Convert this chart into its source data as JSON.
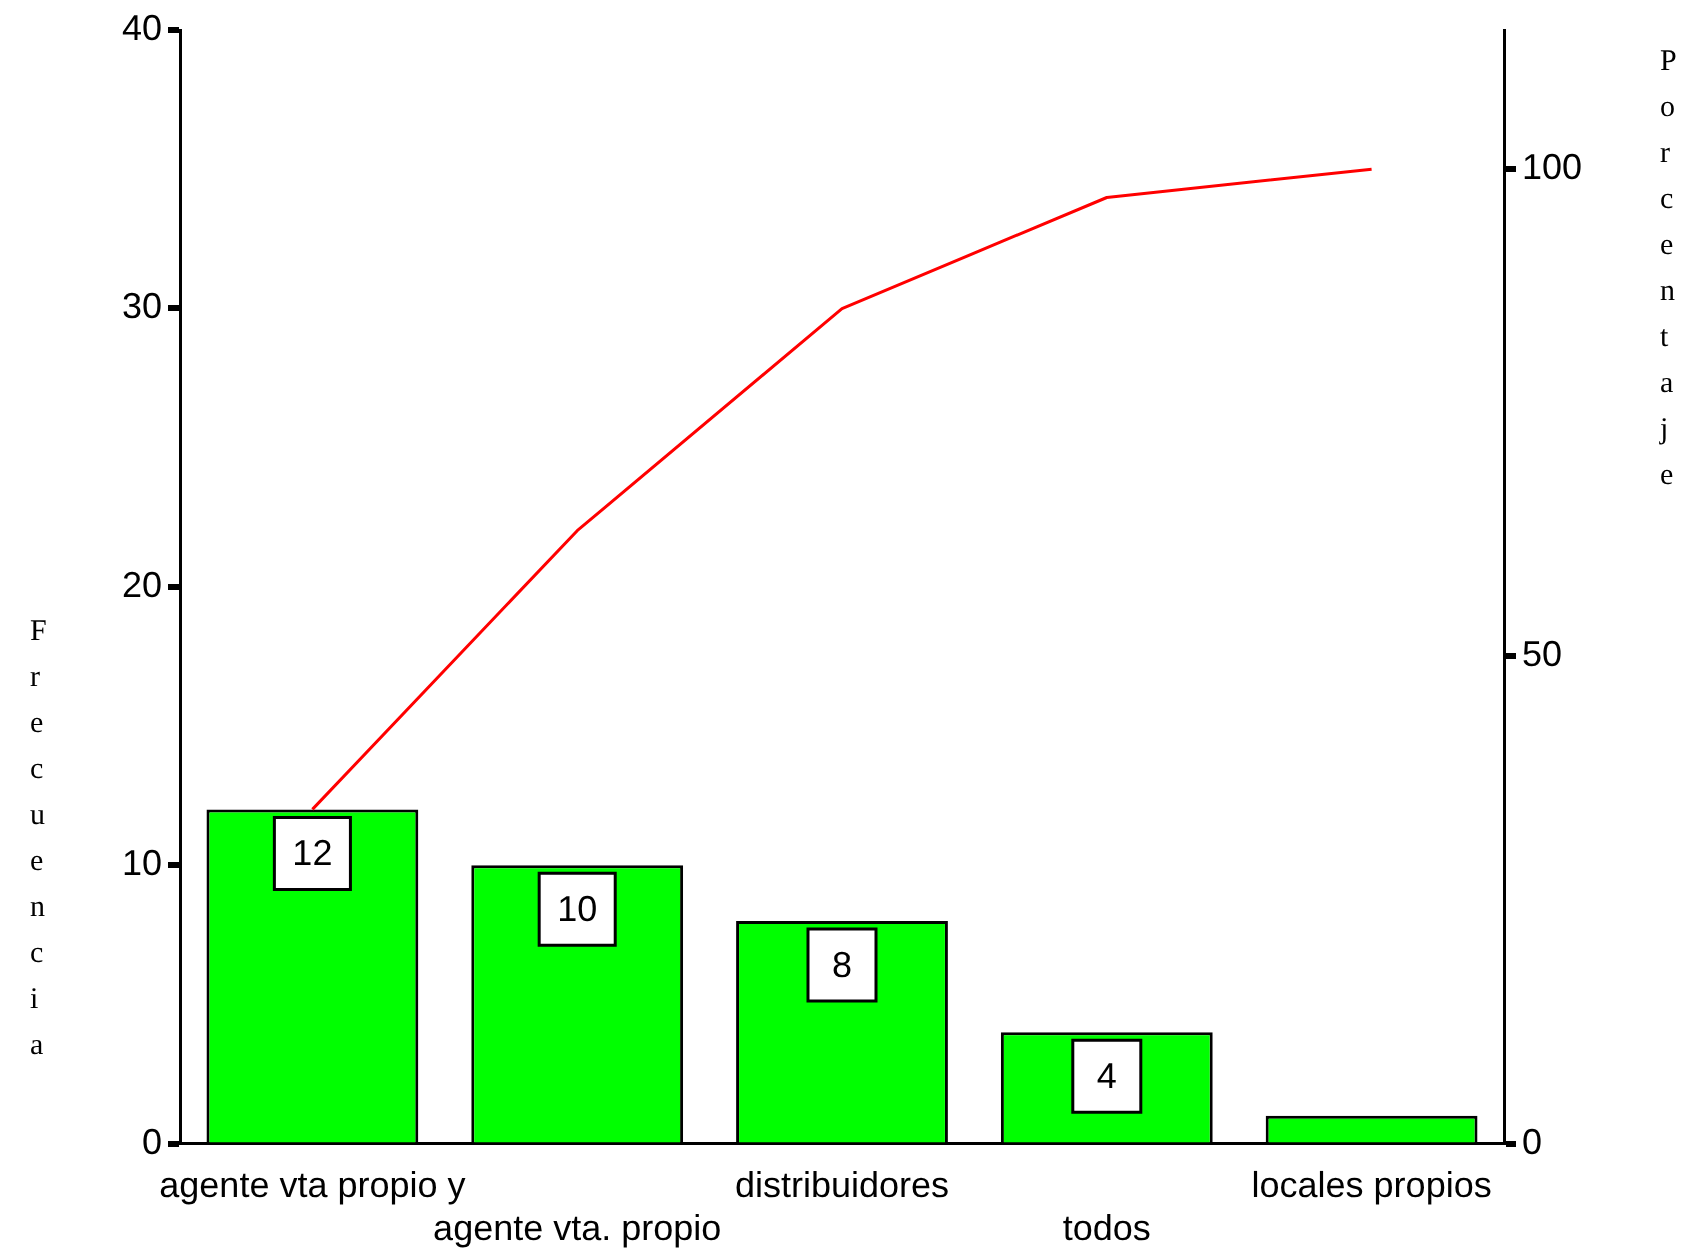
{
  "chart_data": {
    "type": "bar",
    "categories": [
      "agente vta propio y",
      "agente vta. propio",
      "distribuidores",
      "todos",
      "locales propios"
    ],
    "ylabel": "Frecuencia",
    "y2label": "Porcentaje",
    "ylim": [
      0,
      40
    ],
    "yticks": [
      0,
      10,
      20,
      30,
      40
    ],
    "y2lim": [
      0,
      114.29
    ],
    "y2ticks": [
      0,
      50,
      100
    ],
    "grid": false,
    "legend": false,
    "series": [
      {
        "color": "#00ff00",
        "values": [
          12,
          10,
          8,
          4,
          1
        ],
        "value_labels": [
          "12",
          "10",
          "8",
          "4",
          null
        ]
      },
      {
        "type": "line",
        "axis": "y2",
        "color": "#ff0000",
        "marker": "none",
        "line_style": "solid",
        "values": [
          34.3,
          62.9,
          85.7,
          97.1,
          100
        ]
      }
    ]
  }
}
